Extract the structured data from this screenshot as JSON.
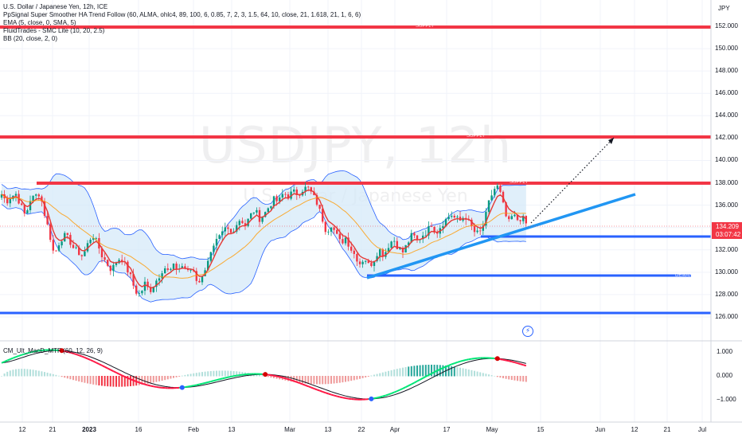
{
  "header": {
    "symbol_title": "U.S. Dollar / Japanese Yen, 12h, ICE",
    "indicators": [
      "PpSignal Super Smoother HA Trend Follow (60, ALMA, ohlc4, 89, 100, 6, 0.85, 7, 2, 3, 1.5, 64, 10, close, 21, 1.618, 21, 1, 6, 6)",
      "EMA (5, close, 0, SMA, 5)",
      "FluidTrades - SMC Lite (10, 20, 2.5)",
      "BB (20, close, 2, 0)"
    ]
  },
  "watermark": {
    "title": "USDJPY, 12h",
    "subtitle": "U.S. Dollar / Japanese Yen"
  },
  "price_axis": {
    "currency": "JPY",
    "labels": [
      "152.000",
      "150.000",
      "148.000",
      "146.000",
      "144.000",
      "142.000",
      "140.000",
      "138.000",
      "136.000",
      "134.000",
      "132.000",
      "130.000",
      "128.000",
      "126.000"
    ],
    "current_price": "134.209",
    "countdown": "03:07:42"
  },
  "zones": {
    "supply_1": "SUPPLY",
    "supply_2": "SUPPLY",
    "supply_3": "SUPPLY",
    "demand_1": "DEMAND"
  },
  "oscillator": {
    "title": "CM_Ult_MacD_MTF (60, 12, 26, 9)",
    "levels": [
      "1.000",
      "0.000",
      "−1.000"
    ]
  },
  "time_axis": {
    "labels": [
      {
        "text": "12",
        "bold": false
      },
      {
        "text": "21",
        "bold": false
      },
      {
        "text": "2023",
        "bold": true
      },
      {
        "text": "16",
        "bold": false
      },
      {
        "text": "Feb",
        "bold": false
      },
      {
        "text": "13",
        "bold": false
      },
      {
        "text": "Mar",
        "bold": false
      },
      {
        "text": "13",
        "bold": false
      },
      {
        "text": "22",
        "bold": false
      },
      {
        "text": "Apr",
        "bold": false
      },
      {
        "text": "17",
        "bold": false
      },
      {
        "text": "May",
        "bold": false
      },
      {
        "text": "15",
        "bold": false
      },
      {
        "text": "Jun",
        "bold": false
      },
      {
        "text": "12",
        "bold": false
      },
      {
        "text": "21",
        "bold": false
      },
      {
        "text": "Jul",
        "bold": false
      }
    ]
  },
  "colors": {
    "up": "#089981",
    "down": "#f23645",
    "supply_line": "#f23645",
    "demand_line": "#2962ff",
    "trendline": "#2196f3",
    "bb_fill": "#d6e9f8",
    "bb_border": "#2962ff",
    "ema": "#e53935",
    "basis": "#ff9800",
    "macd": "#131722",
    "signal_up": "#00e676",
    "signal_down": "#ff1744"
  },
  "chart_data": {
    "type": "candlestick",
    "symbol": "USDJPY",
    "interval": "12h",
    "key_levels": {
      "supply_zones": [
        151.7,
        142.0,
        138.0
      ],
      "demand_zones": [
        133.0,
        129.8,
        126.4
      ]
    },
    "close_path": [
      [
        0,
        137.2
      ],
      [
        8,
        136.3
      ],
      [
        14,
        136.8
      ],
      [
        20,
        137.0
      ],
      [
        26,
        136.0
      ],
      [
        32,
        135.0
      ],
      [
        38,
        136.5
      ],
      [
        44,
        136.8
      ],
      [
        50,
        137.1
      ],
      [
        56,
        135.2
      ],
      [
        62,
        133.5
      ],
      [
        68,
        131.5
      ],
      [
        74,
        132.6
      ],
      [
        80,
        133.3
      ],
      [
        86,
        133.0
      ],
      [
        92,
        132.2
      ],
      [
        98,
        131.8
      ],
      [
        104,
        131.4
      ],
      [
        110,
        132.5
      ],
      [
        116,
        133.4
      ],
      [
        122,
        132.6
      ],
      [
        128,
        131.5
      ],
      [
        134,
        130.8
      ],
      [
        140,
        130.2
      ],
      [
        146,
        130.9
      ],
      [
        152,
        131.4
      ],
      [
        158,
        130.5
      ],
      [
        164,
        129.6
      ],
      [
        170,
        128.3
      ],
      [
        176,
        128.0
      ],
      [
        182,
        129.0
      ],
      [
        188,
        128.3
      ],
      [
        194,
        129.0
      ],
      [
        200,
        129.7
      ],
      [
        206,
        130.5
      ],
      [
        212,
        130.0
      ],
      [
        218,
        130.5
      ],
      [
        224,
        130.3
      ],
      [
        230,
        130.6
      ],
      [
        236,
        130.0
      ],
      [
        242,
        130.4
      ],
      [
        248,
        129.1
      ],
      [
        254,
        129.5
      ],
      [
        260,
        131.0
      ],
      [
        266,
        131.8
      ],
      [
        272,
        132.7
      ],
      [
        278,
        133.3
      ],
      [
        284,
        134.0
      ],
      [
        290,
        133.5
      ],
      [
        296,
        134.2
      ],
      [
        302,
        134.8
      ],
      [
        308,
        134.2
      ],
      [
        314,
        135.0
      ],
      [
        320,
        135.6
      ],
      [
        326,
        134.8
      ],
      [
        332,
        135.2
      ],
      [
        338,
        135.9
      ],
      [
        344,
        136.5
      ],
      [
        350,
        136.3
      ],
      [
        356,
        137.1
      ],
      [
        362,
        136.8
      ],
      [
        368,
        137.2
      ],
      [
        374,
        137.0
      ],
      [
        380,
        137.4
      ],
      [
        386,
        137.6
      ],
      [
        392,
        137.0
      ],
      [
        398,
        136.2
      ],
      [
        404,
        135.0
      ],
      [
        410,
        133.6
      ],
      [
        416,
        134.3
      ],
      [
        422,
        133.4
      ],
      [
        428,
        132.6
      ],
      [
        434,
        133.1
      ],
      [
        440,
        132.2
      ],
      [
        446,
        131.5
      ],
      [
        452,
        130.8
      ],
      [
        458,
        131.3
      ],
      [
        464,
        130.5
      ],
      [
        470,
        131.2
      ],
      [
        476,
        132.1
      ],
      [
        482,
        131.5
      ],
      [
        488,
        132.4
      ],
      [
        494,
        133.0
      ],
      [
        500,
        132.2
      ],
      [
        506,
        131.8
      ],
      [
        512,
        132.6
      ],
      [
        518,
        133.4
      ],
      [
        524,
        132.8
      ],
      [
        530,
        133.3
      ],
      [
        536,
        133.6
      ],
      [
        542,
        134.3
      ],
      [
        548,
        133.5
      ],
      [
        554,
        134.2
      ],
      [
        560,
        134.7
      ],
      [
        566,
        135.2
      ],
      [
        572,
        134.8
      ],
      [
        578,
        134.6
      ],
      [
        584,
        135.1
      ],
      [
        590,
        134.3
      ],
      [
        596,
        133.6
      ],
      [
        602,
        133.4
      ],
      [
        608,
        134.4
      ],
      [
        614,
        136.2
      ],
      [
        620,
        137.4
      ],
      [
        626,
        137.7
      ],
      [
        632,
        136.0
      ],
      [
        638,
        134.3
      ],
      [
        644,
        135.1
      ],
      [
        650,
        134.7
      ],
      [
        656,
        134.9
      ],
      [
        662,
        134.2
      ]
    ],
    "indicator": "CM_Ult_MacD_MTF",
    "macd_levels": [
      1.0,
      0.0,
      -1.0
    ]
  }
}
